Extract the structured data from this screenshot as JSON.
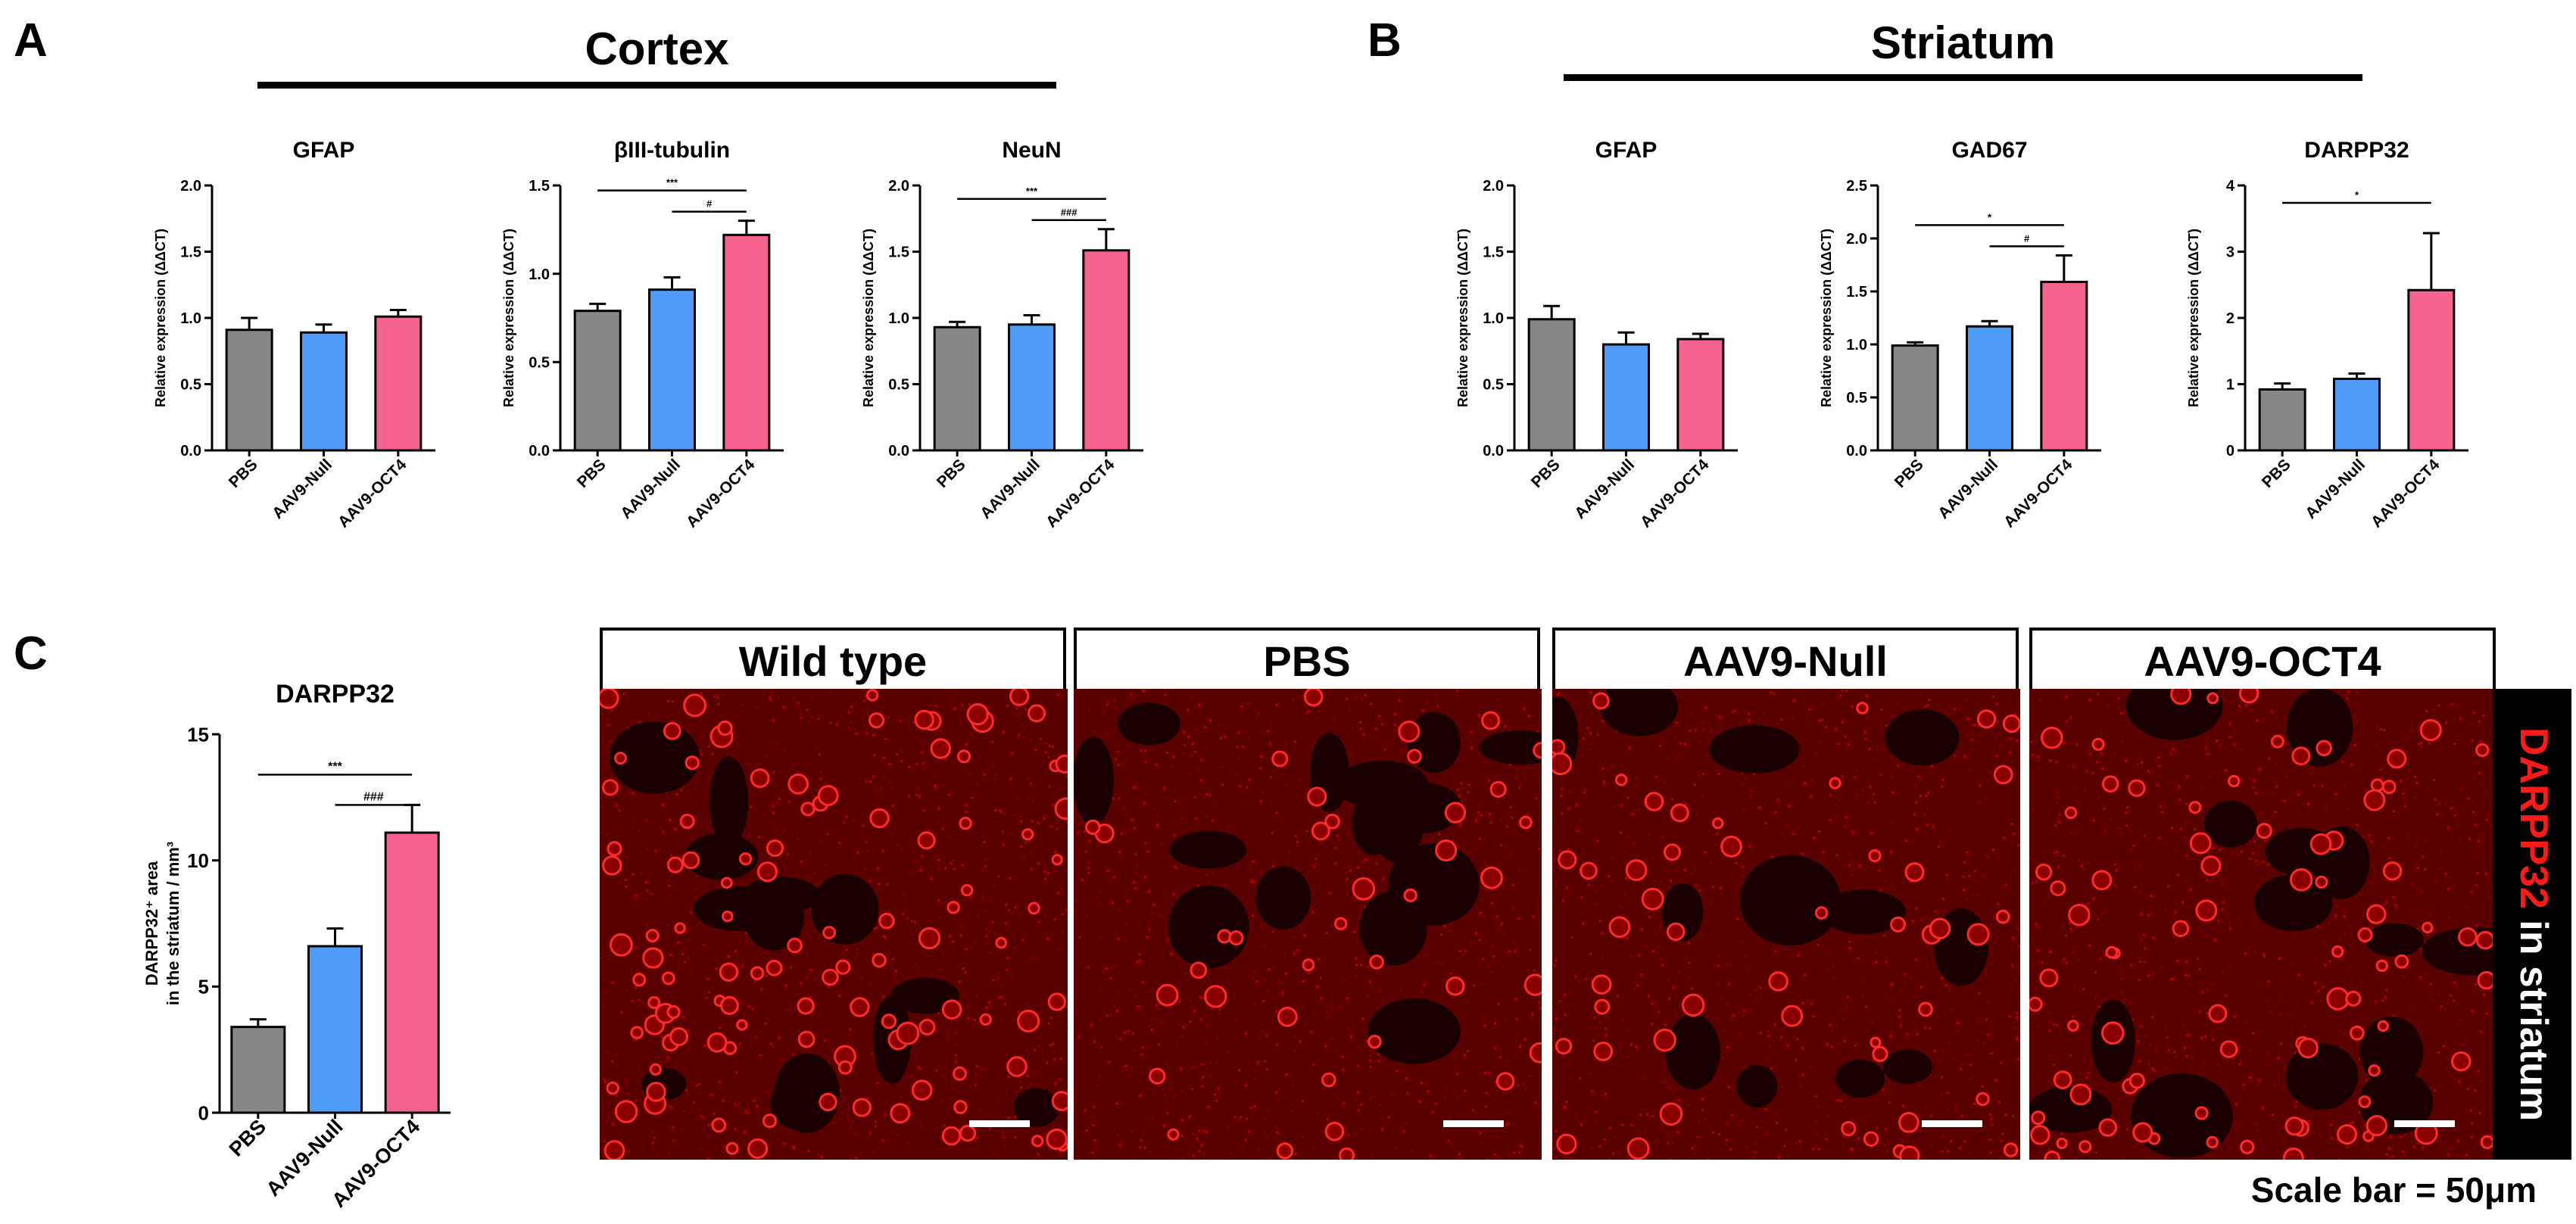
{
  "panels": {
    "a": {
      "letter": "A",
      "region": "Cortex"
    },
    "b": {
      "letter": "B",
      "region": "Striatum"
    },
    "c": {
      "letter": "C"
    }
  },
  "colors": {
    "pbs": "#878787",
    "null": "#4f9cf8",
    "oct4": "#f4648e"
  },
  "chart_data": [
    {
      "id": "cortex-gfap",
      "type": "bar",
      "title": "GFAP",
      "ylabel": "Relative expression (ΔΔCT)",
      "categories": [
        "PBS",
        "AAV9-Null",
        "AAV9-OCT4"
      ],
      "values": [
        0.91,
        0.89,
        1.01
      ],
      "errors": [
        0.09,
        0.06,
        0.05
      ],
      "ylim": [
        0,
        2.0
      ],
      "yticks": [
        "0.0",
        "0.5",
        "1.0",
        "1.5",
        "2.0"
      ],
      "annotations": []
    },
    {
      "id": "cortex-tubulin",
      "type": "bar",
      "title": "βIII-tubulin",
      "ylabel": "Relative expression (ΔΔCT)",
      "categories": [
        "PBS",
        "AAV9-Null",
        "AAV9-OCT4"
      ],
      "values": [
        0.79,
        0.91,
        1.22
      ],
      "errors": [
        0.04,
        0.07,
        0.08
      ],
      "ylim": [
        0,
        1.5
      ],
      "yticks": [
        "0.0",
        "0.5",
        "1.0",
        "1.5"
      ],
      "annotations": [
        {
          "from": 0,
          "to": 2,
          "label": "***"
        },
        {
          "from": 1,
          "to": 2,
          "label": "#"
        }
      ]
    },
    {
      "id": "cortex-neun",
      "type": "bar",
      "title": "NeuN",
      "ylabel": "Relative expression (ΔΔCT)",
      "categories": [
        "PBS",
        "AAV9-Null",
        "AAV9-OCT4"
      ],
      "values": [
        0.93,
        0.95,
        1.51
      ],
      "errors": [
        0.04,
        0.07,
        0.16
      ],
      "ylim": [
        0,
        2.0
      ],
      "yticks": [
        "0.0",
        "0.5",
        "1.0",
        "1.5",
        "2.0"
      ],
      "annotations": [
        {
          "from": 0,
          "to": 2,
          "label": "***"
        },
        {
          "from": 1,
          "to": 2,
          "label": "###"
        }
      ]
    },
    {
      "id": "striatum-gfap",
      "type": "bar",
      "title": "GFAP",
      "ylabel": "Relative expression (ΔΔCT)",
      "categories": [
        "PBS",
        "AAV9-Null",
        "AAV9-OCT4"
      ],
      "values": [
        0.99,
        0.8,
        0.84
      ],
      "errors": [
        0.1,
        0.09,
        0.04
      ],
      "ylim": [
        0,
        2.0
      ],
      "yticks": [
        "0.0",
        "0.5",
        "1.0",
        "1.5",
        "2.0"
      ],
      "annotations": []
    },
    {
      "id": "striatum-gad67",
      "type": "bar",
      "title": "GAD67",
      "ylabel": "Relative expression (ΔΔCT)",
      "categories": [
        "PBS",
        "AAV9-Null",
        "AAV9-OCT4"
      ],
      "values": [
        0.99,
        1.17,
        1.59
      ],
      "errors": [
        0.03,
        0.05,
        0.25
      ],
      "ylim": [
        0,
        2.5
      ],
      "yticks": [
        "0.0",
        "0.5",
        "1.0",
        "1.5",
        "2.0",
        "2.5"
      ],
      "annotations": [
        {
          "from": 0,
          "to": 2,
          "label": "*"
        },
        {
          "from": 1,
          "to": 2,
          "label": "#"
        }
      ]
    },
    {
      "id": "striatum-darpp32",
      "type": "bar",
      "title": "DARPP32",
      "ylabel": "Relative expression (ΔΔCT)",
      "categories": [
        "PBS",
        "AAV9-Null",
        "AAV9-OCT4"
      ],
      "values": [
        0.92,
        1.08,
        2.42
      ],
      "errors": [
        0.09,
        0.08,
        0.86
      ],
      "ylim": [
        0,
        4
      ],
      "yticks": [
        "0",
        "1",
        "2",
        "3",
        "4"
      ],
      "annotations": [
        {
          "from": 0,
          "to": 2,
          "label": "*"
        }
      ]
    },
    {
      "id": "darpp32-area",
      "type": "bar",
      "title": "DARPP32",
      "ylabel_lines": [
        "DARPP32⁺ area",
        "in the striatum / mm³"
      ],
      "categories": [
        "PBS",
        "AAV9-Null",
        "AAV9-OCT4"
      ],
      "values": [
        3.4,
        6.6,
        11.1
      ],
      "errors": [
        0.3,
        0.7,
        1.1
      ],
      "ylim": [
        0,
        15
      ],
      "yticks": [
        "0",
        "5",
        "10",
        "15"
      ],
      "annotations": [
        {
          "from": 0,
          "to": 2,
          "label": "***"
        },
        {
          "from": 1,
          "to": 2,
          "label": "###"
        }
      ]
    }
  ],
  "micrographs": {
    "panels": [
      {
        "label": "Wild type",
        "cell_density": 0.9
      },
      {
        "label": "PBS",
        "cell_density": 0.25
      },
      {
        "label": "AAV9-Null",
        "cell_density": 0.35
      },
      {
        "label": "AAV9-OCT4",
        "cell_density": 0.65
      }
    ],
    "side_marker": "DARPP32",
    "side_rest": " in striatum",
    "scale_bar_text": "Scale bar = 50μm"
  }
}
